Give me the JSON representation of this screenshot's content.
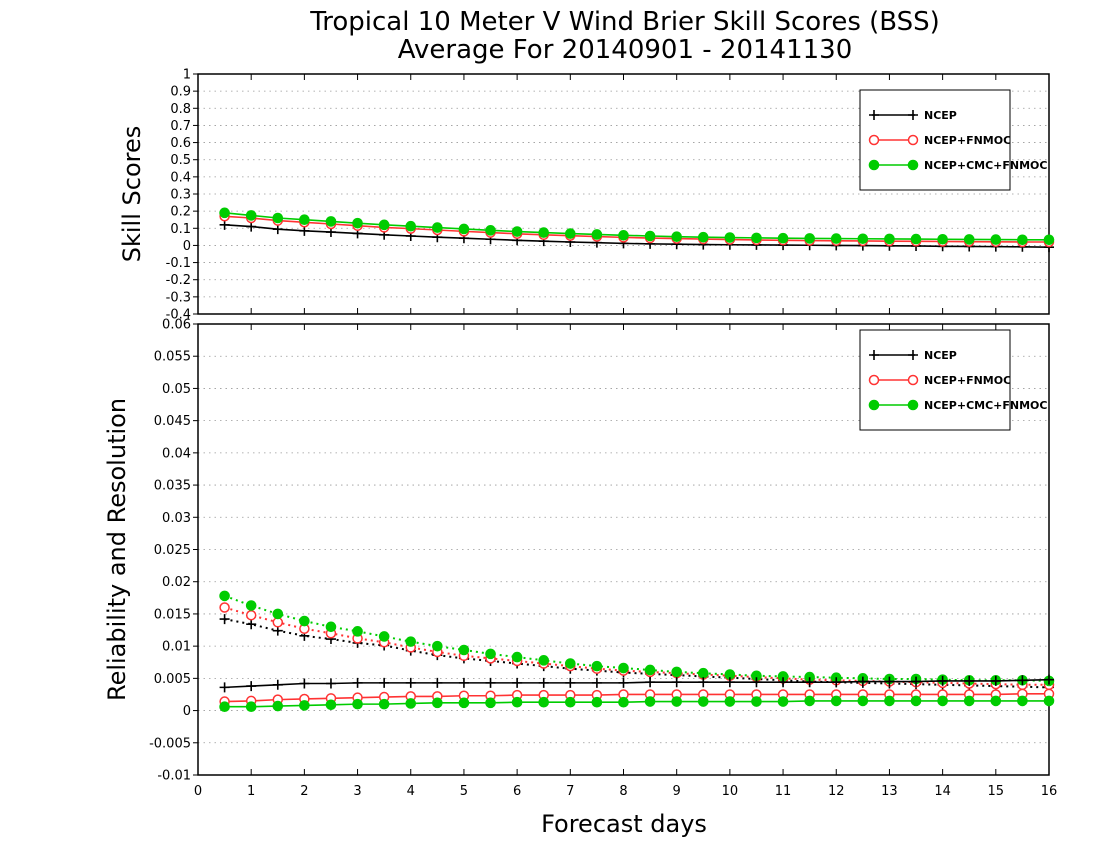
{
  "title": "Tropical 10 Meter V Wind Brier Skill Scores (BSS)",
  "subtitle": "Average For 20140901 - 20141130",
  "xlabel": "Forecast days",
  "colors": {
    "ncep": "#000000",
    "fnmoc": "#ff3333",
    "cmc": "#00cc00",
    "grid": "#999999"
  },
  "chart_data": [
    {
      "type": "line",
      "ylabel": "Skill Scores",
      "xlim": [
        0,
        16
      ],
      "ylim": [
        -0.4,
        1
      ],
      "x_ticks": [
        "0",
        "1",
        "2",
        "3",
        "4",
        "5",
        "6",
        "7",
        "8",
        "9",
        "10",
        "11",
        "12",
        "13",
        "14",
        "15",
        "16"
      ],
      "y_ticks": [
        "-0.4",
        "-0.3",
        "-0.2",
        "-0.1",
        "0",
        "0.1",
        "0.2",
        "0.3",
        "0.4",
        "0.5",
        "0.6",
        "0.7",
        "0.8",
        "0.9",
        "1"
      ],
      "grid": true,
      "legend_position": "top-right",
      "x": [
        0.5,
        1,
        1.5,
        2,
        2.5,
        3,
        3.5,
        4,
        4.5,
        5,
        5.5,
        6,
        6.5,
        7,
        7.5,
        8,
        8.5,
        9,
        9.5,
        10,
        10.5,
        11,
        11.5,
        12,
        12.5,
        13,
        13.5,
        14,
        14.5,
        15,
        15.5,
        16
      ],
      "series": [
        {
          "name": "NCEP",
          "style": "plus-solid",
          "color_key": "ncep",
          "values": [
            0.12,
            0.11,
            0.095,
            0.085,
            0.078,
            0.07,
            0.062,
            0.055,
            0.048,
            0.042,
            0.036,
            0.03,
            0.025,
            0.02,
            0.016,
            0.012,
            0.009,
            0.007,
            0.005,
            0.004,
            0.003,
            0.002,
            0.001,
            0.0,
            -0.001,
            -0.002,
            -0.003,
            -0.005,
            -0.006,
            -0.007,
            -0.008,
            -0.01
          ]
        },
        {
          "name": "NCEP+FNMOC",
          "style": "open-circle-solid",
          "color_key": "fnmoc",
          "values": [
            0.17,
            0.16,
            0.145,
            0.135,
            0.125,
            0.115,
            0.105,
            0.098,
            0.09,
            0.082,
            0.075,
            0.068,
            0.062,
            0.057,
            0.052,
            0.047,
            0.043,
            0.04,
            0.037,
            0.034,
            0.032,
            0.03,
            0.028,
            0.027,
            0.026,
            0.025,
            0.024,
            0.023,
            0.022,
            0.021,
            0.02,
            0.02
          ]
        },
        {
          "name": "NCEP+CMC+FNMOC",
          "style": "filled-circle-solid",
          "color_key": "cmc",
          "values": [
            0.19,
            0.175,
            0.16,
            0.15,
            0.14,
            0.13,
            0.12,
            0.112,
            0.104,
            0.096,
            0.088,
            0.081,
            0.075,
            0.069,
            0.064,
            0.059,
            0.055,
            0.051,
            0.048,
            0.046,
            0.044,
            0.042,
            0.041,
            0.04,
            0.039,
            0.038,
            0.037,
            0.036,
            0.035,
            0.034,
            0.033,
            0.033
          ]
        }
      ]
    },
    {
      "type": "line",
      "ylabel": "Reliability and Resolution",
      "xlim": [
        0,
        16
      ],
      "ylim": [
        -0.01,
        0.06
      ],
      "x_ticks": [
        "0",
        "1",
        "2",
        "3",
        "4",
        "5",
        "6",
        "7",
        "8",
        "9",
        "10",
        "11",
        "12",
        "13",
        "14",
        "15",
        "16"
      ],
      "y_ticks": [
        "-0.01",
        "-0.005",
        "0",
        "0.005",
        "0.01",
        "0.015",
        "0.02",
        "0.025",
        "0.03",
        "0.035",
        "0.04",
        "0.045",
        "0.05",
        "0.055",
        "0.06"
      ],
      "grid": true,
      "legend_position": "top-right",
      "x": [
        0.5,
        1,
        1.5,
        2,
        2.5,
        3,
        3.5,
        4,
        4.5,
        5,
        5.5,
        6,
        6.5,
        7,
        7.5,
        8,
        8.5,
        9,
        9.5,
        10,
        10.5,
        11,
        11.5,
        12,
        12.5,
        13,
        13.5,
        14,
        14.5,
        15,
        15.5,
        16
      ],
      "series": [
        {
          "name": "NCEP",
          "style": "plus-dotted",
          "color_key": "ncep",
          "measure": "resolution",
          "values": [
            0.0142,
            0.0134,
            0.0124,
            0.0116,
            0.0111,
            0.0105,
            0.0101,
            0.0093,
            0.0086,
            0.0081,
            0.0077,
            0.0073,
            0.0069,
            0.0065,
            0.0062,
            0.0059,
            0.0057,
            0.0055,
            0.0053,
            0.0051,
            0.0049,
            0.0047,
            0.0045,
            0.0044,
            0.0043,
            0.0042,
            0.0041,
            0.004,
            0.0039,
            0.0038,
            0.0037,
            0.0036
          ]
        },
        {
          "name": "NCEP+FNMOC",
          "style": "open-circle-dotted",
          "color_key": "fnmoc",
          "measure": "resolution",
          "values": [
            0.016,
            0.0148,
            0.0137,
            0.0127,
            0.012,
            0.0112,
            0.0106,
            0.0098,
            0.0091,
            0.0085,
            0.0081,
            0.0077,
            0.0073,
            0.0069,
            0.0065,
            0.0062,
            0.006,
            0.0058,
            0.0056,
            0.0054,
            0.0052,
            0.005,
            0.0048,
            0.0047,
            0.0046,
            0.0045,
            0.0044,
            0.0043,
            0.0042,
            0.0041,
            0.004,
            0.004
          ]
        },
        {
          "name": "NCEP+CMC+FNMOC",
          "style": "filled-circle-dotted",
          "color_key": "cmc",
          "measure": "resolution",
          "values": [
            0.0178,
            0.0163,
            0.015,
            0.0139,
            0.013,
            0.0123,
            0.0115,
            0.0107,
            0.01,
            0.0094,
            0.0088,
            0.0083,
            0.0078,
            0.0073,
            0.0069,
            0.0066,
            0.0063,
            0.006,
            0.0058,
            0.0056,
            0.0054,
            0.0053,
            0.0052,
            0.0051,
            0.005,
            0.0049,
            0.0049,
            0.0048,
            0.0047,
            0.0047,
            0.0047,
            0.0046
          ]
        },
        {
          "name": "NCEP",
          "style": "plus-solid",
          "color_key": "ncep",
          "measure": "reliability",
          "values": [
            0.0036,
            0.0038,
            0.004,
            0.0042,
            0.0042,
            0.0043,
            0.0043,
            0.0043,
            0.0043,
            0.0043,
            0.0043,
            0.0043,
            0.0043,
            0.0043,
            0.0043,
            0.0043,
            0.0044,
            0.0044,
            0.0044,
            0.0044,
            0.0044,
            0.0044,
            0.0044,
            0.0044,
            0.0045,
            0.0045,
            0.0045,
            0.0046,
            0.0046,
            0.0046,
            0.0047,
            0.0048
          ]
        },
        {
          "name": "NCEP+FNMOC",
          "style": "open-circle-solid",
          "color_key": "fnmoc",
          "measure": "reliability",
          "values": [
            0.0014,
            0.0015,
            0.0017,
            0.0018,
            0.0019,
            0.002,
            0.0021,
            0.0022,
            0.0022,
            0.0023,
            0.0023,
            0.0024,
            0.0024,
            0.0024,
            0.0024,
            0.0025,
            0.0025,
            0.0025,
            0.0025,
            0.0025,
            0.0025,
            0.0025,
            0.0025,
            0.0025,
            0.0025,
            0.0025,
            0.0025,
            0.0025,
            0.0025,
            0.0025,
            0.0026,
            0.0026
          ]
        },
        {
          "name": "NCEP+CMC+FNMOC",
          "style": "filled-circle-solid",
          "color_key": "cmc",
          "measure": "reliability",
          "values": [
            0.0006,
            0.0006,
            0.0007,
            0.0008,
            0.0009,
            0.001,
            0.001,
            0.0011,
            0.0012,
            0.0012,
            0.0012,
            0.0013,
            0.0013,
            0.0013,
            0.0013,
            0.0013,
            0.0014,
            0.0014,
            0.0014,
            0.0014,
            0.0014,
            0.0014,
            0.0015,
            0.0015,
            0.0015,
            0.0015,
            0.0015,
            0.0015,
            0.0015,
            0.0015,
            0.0015,
            0.0015
          ]
        }
      ],
      "legend": [
        "NCEP",
        "NCEP+FNMOC",
        "NCEP+CMC+FNMOC"
      ]
    }
  ]
}
